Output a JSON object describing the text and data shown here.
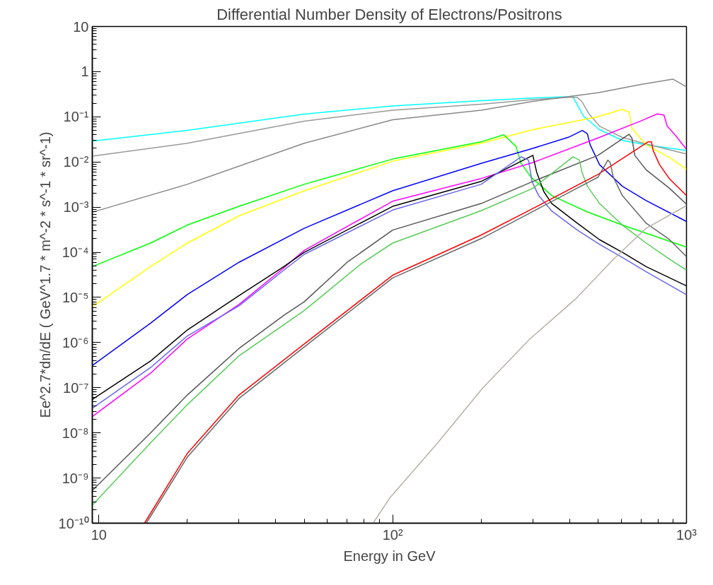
{
  "chart_data": {
    "type": "line",
    "title": "Differential Number Density of Electrons/Positrons",
    "xlabel": "Energy in GeV",
    "ylabel": "Ee^2.7*dn/dE ( GeV^1.7 * m^-2 * s^-1 * sr^-1)",
    "log": "xy",
    "grid": false,
    "marker": "none",
    "line_style": "solid",
    "xlim": [
      9.5,
      1000
    ],
    "ylim": [
      1e-10,
      10
    ],
    "xticks": [
      10,
      {
        "value": 100,
        "label": "10²"
      },
      {
        "value": 1000,
        "label": "10³"
      }
    ],
    "yticks": [
      {
        "value": 1e-10,
        "label": "10⁻¹⁰"
      },
      {
        "value": 1e-09,
        "label": "10⁻⁹"
      },
      {
        "value": 1e-08,
        "label": "10⁻⁸"
      },
      {
        "value": 1e-07,
        "label": "10⁻⁷"
      },
      {
        "value": 1e-06,
        "label": "10⁻⁶"
      },
      {
        "value": 1e-05,
        "label": "10⁻⁵"
      },
      {
        "value": 0.0001,
        "label": "10⁻⁴"
      },
      {
        "value": 0.001,
        "label": "10⁻³"
      },
      {
        "value": 0.01,
        "label": "10⁻²"
      },
      {
        "value": 0.1,
        "label": "10⁻¹"
      },
      1,
      10
    ],
    "series": [
      {
        "color": "#00ffff",
        "x": [
          9.5,
          20,
          50,
          100,
          200,
          300,
          400,
          410,
          446,
          506,
          605,
          729,
          1000
        ],
        "values": [
          0.029,
          0.05,
          0.115,
          0.174,
          0.228,
          0.26,
          0.28,
          0.284,
          0.104,
          0.052,
          0.03,
          0.024,
          0.018
        ]
      },
      {
        "color": "#999999",
        "x": [
          9.5,
          20,
          50,
          100,
          200,
          300,
          400,
          425,
          440,
          466,
          506,
          605,
          729,
          1000
        ],
        "values": [
          0.0135,
          0.026,
          0.08,
          0.14,
          0.19,
          0.24,
          0.27,
          0.27,
          0.22,
          0.116,
          0.062,
          0.035,
          0.025,
          0.015
        ]
      },
      {
        "color": "#888888",
        "x": [
          9.5,
          20,
          50,
          100,
          200,
          300,
          500,
          700,
          900,
          1000
        ],
        "values": [
          0.00077,
          0.0032,
          0.026,
          0.086,
          0.14,
          0.22,
          0.34,
          0.52,
          0.68,
          0.46
        ]
      },
      {
        "color": "#ffff00",
        "x": [
          9.5,
          15,
          20,
          30,
          50,
          100,
          200,
          300,
          500,
          605,
          638,
          652,
          729,
          876,
          1000
        ],
        "values": [
          6.2e-06,
          4.8e-05,
          0.00016,
          0.00064,
          0.0023,
          0.0104,
          0.026,
          0.052,
          0.1,
          0.146,
          0.127,
          0.056,
          0.024,
          0.0125,
          0.0069
        ]
      },
      {
        "color": "#00ff00",
        "x": [
          9.5,
          15,
          20,
          30,
          50,
          100,
          200,
          239,
          263,
          273,
          295,
          348,
          460,
          605,
          1000
        ],
        "values": [
          4.8e-05,
          0.00016,
          0.0004,
          0.00104,
          0.0032,
          0.0116,
          0.028,
          0.04,
          0.022,
          0.0096,
          0.0047,
          0.0018,
          0.00078,
          0.0004,
          0.00013
        ]
      },
      {
        "color": "#0000ff",
        "x": [
          9.5,
          15,
          20,
          30,
          50,
          100,
          200,
          300,
          400,
          442,
          460,
          470,
          506,
          605,
          729,
          1000
        ],
        "values": [
          3.1e-07,
          2.7e-06,
          1.16e-05,
          6e-05,
          0.00034,
          0.0023,
          0.0093,
          0.02,
          0.036,
          0.05,
          0.042,
          0.024,
          0.0087,
          0.0029,
          0.0014,
          0.00048
        ]
      },
      {
        "color": "#ff00ff",
        "x": [
          9.5,
          15,
          20,
          30,
          42.6,
          50,
          100,
          200,
          300,
          500,
          700,
          796,
          838,
          860,
          920,
          1000
        ],
        "values": [
          2.3e-08,
          2.1e-07,
          1.2e-06,
          7e-06,
          4.5e-05,
          0.00011,
          0.00135,
          0.0043,
          0.0097,
          0.034,
          0.081,
          0.116,
          0.11,
          0.062,
          0.038,
          0.019
        ]
      },
      {
        "color": "#000000",
        "x": [
          9.5,
          15,
          20,
          30,
          42.6,
          50,
          100,
          200,
          300,
          309,
          327,
          348,
          425,
          506,
          605,
          729,
          1000
        ],
        "values": [
          5.5e-08,
          3.9e-07,
          1.9e-06,
          1.1e-05,
          4.8e-05,
          0.0001,
          0.00104,
          0.0037,
          0.014,
          0.006,
          0.0022,
          0.0012,
          0.00044,
          0.00019,
          0.0001,
          4.8e-05,
          1.8e-05
        ]
      },
      {
        "color": "#6666ee",
        "x": [
          9.5,
          15,
          20,
          30,
          42.6,
          50,
          100,
          200,
          274,
          290,
          298,
          314,
          348,
          425,
          506,
          605,
          729,
          1000
        ],
        "values": [
          3.5e-08,
          2.8e-07,
          1.4e-06,
          6.5e-06,
          4e-05,
          9e-05,
          0.00086,
          0.0032,
          0.013,
          0.011,
          0.0037,
          0.0018,
          0.00082,
          0.00031,
          0.00015,
          7.7e-05,
          3.7e-05,
          1.15e-05
        ]
      },
      {
        "color": "#555555",
        "x": [
          9.5,
          15,
          20,
          30,
          42.6,
          50,
          70,
          100,
          200,
          300,
          500,
          637,
          652,
          667,
          729,
          876,
          1000
        ],
        "values": [
          5.3e-10,
          1e-08,
          6.9e-08,
          7.4e-07,
          4e-06,
          8e-06,
          6e-05,
          0.00031,
          0.0012,
          0.0037,
          0.014,
          0.041,
          0.034,
          0.014,
          0.0067,
          0.0026,
          0.00116
        ]
      },
      {
        "color": "#55cc55",
        "x": [
          9.5,
          15,
          20,
          30,
          50,
          78,
          100,
          200,
          300,
          411,
          432,
          442,
          460,
          506,
          605,
          729,
          876,
          1000
        ],
        "values": [
          2.5e-10,
          6e-09,
          4.2e-08,
          5.1e-07,
          5.1e-06,
          5.5e-05,
          0.00016,
          0.00083,
          0.0026,
          0.013,
          0.011,
          0.0056,
          0.0029,
          0.0012,
          0.0004,
          0.00016,
          7e-05,
          4e-05
        ]
      },
      {
        "color": "#ff0000",
        "x": [
          14.3,
          20,
          30,
          50,
          100,
          200,
          300,
          500,
          741,
          760,
          770,
          810,
          876,
          1000
        ],
        "values": [
          1e-10,
          3.5e-09,
          6.9e-08,
          9.3e-07,
          3.1e-05,
          0.00024,
          0.00093,
          0.0053,
          0.028,
          0.028,
          0.018,
          0.0087,
          0.0042,
          0.0018
        ]
      },
      {
        "color": "#666666",
        "x": [
          14.5,
          20,
          30,
          50,
          100,
          200,
          300,
          500,
          540,
          550,
          563,
          605,
          729,
          876,
          1000
        ],
        "values": [
          1e-10,
          2.9e-09,
          5.8e-08,
          8e-07,
          2.7e-05,
          0.0002,
          0.0008,
          0.0046,
          0.011,
          0.0097,
          0.0047,
          0.0018,
          0.00044,
          0.00019,
          8e-05
        ]
      },
      {
        "color": "#b8b0a8",
        "x": [
          85.8,
          98,
          142,
          203,
          293,
          422,
          564,
          729,
          1000
        ],
        "values": [
          1e-10,
          3.7e-10,
          5.9e-09,
          1e-07,
          1.2e-06,
          9.6e-06,
          7e-05,
          0.00034,
          0.00108
        ]
      }
    ]
  }
}
